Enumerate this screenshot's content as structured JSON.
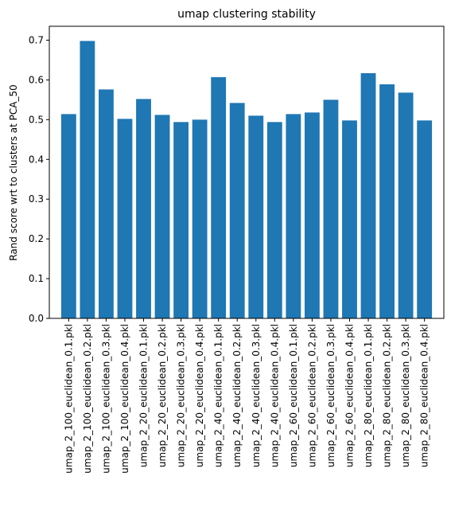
{
  "chart_data": {
    "type": "bar",
    "title": "umap clustering stability",
    "xlabel": "",
    "ylabel": "Rand score wrt to clusters at PCA_50",
    "ylim": [
      0,
      0.735
    ],
    "yticks": [
      "0.0",
      "0.1",
      "0.2",
      "0.3",
      "0.4",
      "0.5",
      "0.6",
      "0.7"
    ],
    "grid": false,
    "bar_color": "#1f77b4",
    "categories": [
      "umap_2_100_euclidean_0.1.pkl",
      "umap_2_100_euclidean_0.2.pkl",
      "umap_2_100_euclidean_0.3.pkl",
      "umap_2_100_euclidean_0.4.pkl",
      "umap_2_20_euclidean_0.1.pkl",
      "umap_2_20_euclidean_0.2.pkl",
      "umap_2_20_euclidean_0.3.pkl",
      "umap_2_20_euclidean_0.4.pkl",
      "umap_2_40_euclidean_0.1.pkl",
      "umap_2_40_euclidean_0.2.pkl",
      "umap_2_40_euclidean_0.3.pkl",
      "umap_2_40_euclidean_0.4.pkl",
      "umap_2_60_euclidean_0.1.pkl",
      "umap_2_60_euclidean_0.2.pkl",
      "umap_2_60_euclidean_0.3.pkl",
      "umap_2_60_euclidean_0.4.pkl",
      "umap_2_80_euclidean_0.1.pkl",
      "umap_2_80_euclidean_0.2.pkl",
      "umap_2_80_euclidean_0.3.pkl",
      "umap_2_80_euclidean_0.4.pkl"
    ],
    "values": [
      0.514,
      0.698,
      0.576,
      0.502,
      0.552,
      0.512,
      0.494,
      0.5,
      0.607,
      0.542,
      0.51,
      0.494,
      0.514,
      0.518,
      0.55,
      0.498,
      0.617,
      0.589,
      0.568,
      0.498
    ]
  }
}
